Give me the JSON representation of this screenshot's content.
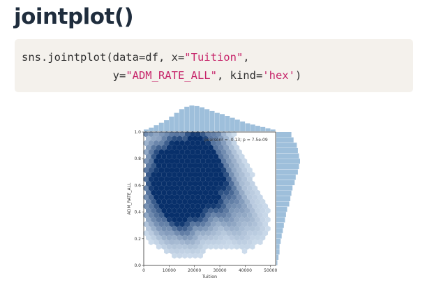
{
  "heading": "jointplot()",
  "code": {
    "line1": {
      "prefix": "sns.jointplot(data=df, x=",
      "x_value": "\"Tuition\"",
      "suffix": ","
    },
    "line2": {
      "prefix": "              y=",
      "y_value": "\"ADM_RATE_ALL\"",
      "middle": ", kind=",
      "kind_value": "'hex'",
      "suffix": ")"
    }
  },
  "colors": {
    "string": "#c7266b",
    "hex_base": "#2f7fc0",
    "hex_dark": "#08306b",
    "marginal": "#9ebfdb"
  },
  "chart_data": {
    "type": "hexbin",
    "xlabel": "Tuition",
    "ylabel": "ADM_RATE_ALL",
    "xlim": [
      0,
      52000
    ],
    "ylim": [
      0,
      1.0
    ],
    "x_ticks": [
      {
        "value": 0,
        "label": "0"
      },
      {
        "value": 10000,
        "label": "10000"
      },
      {
        "value": 20000,
        "label": "20000"
      },
      {
        "value": 30000,
        "label": "30000"
      },
      {
        "value": 40000,
        "label": "40000"
      },
      {
        "value": 50000,
        "label": "50000"
      }
    ],
    "y_ticks": [
      {
        "value": 0.0,
        "label": "0.0"
      },
      {
        "value": 0.2,
        "label": "0.2"
      },
      {
        "value": 0.4,
        "label": "0.4"
      },
      {
        "value": 0.6,
        "label": "0.6"
      },
      {
        "value": 0.8,
        "label": "0.8"
      },
      {
        "value": 1.0,
        "label": "1.0"
      }
    ],
    "annotation": "pearsonr = -0.13; p = 7.5e-09",
    "hex_centers": [
      {
        "x": 16000,
        "y": 0.6,
        "density": 1.0
      },
      {
        "x": 21000,
        "y": 0.78,
        "density": 0.95
      },
      {
        "x": 15000,
        "y": 0.52,
        "density": 0.85
      },
      {
        "x": 12000,
        "y": 0.7,
        "density": 0.7
      },
      {
        "x": 25000,
        "y": 0.66,
        "density": 0.7
      },
      {
        "x": 8000,
        "y": 0.82,
        "density": 0.55
      },
      {
        "x": 30000,
        "y": 0.55,
        "density": 0.45
      },
      {
        "x": 10000,
        "y": 0.4,
        "density": 0.4
      },
      {
        "x": 22000,
        "y": 0.98,
        "density": 0.5
      },
      {
        "x": 35000,
        "y": 0.4,
        "density": 0.25
      },
      {
        "x": 18000,
        "y": 0.3,
        "density": 0.3
      },
      {
        "x": 42000,
        "y": 0.3,
        "density": 0.15
      },
      {
        "x": 5000,
        "y": 0.55,
        "density": 0.35
      }
    ],
    "marginal_x": {
      "bins_start": 0,
      "bin_width": 2000,
      "counts": [
        3,
        6,
        10,
        14,
        18,
        24,
        30,
        36,
        40,
        42,
        41,
        39,
        36,
        33,
        30,
        28,
        25,
        22,
        19,
        16,
        13,
        11,
        9,
        7,
        5,
        3
      ]
    },
    "marginal_y": {
      "bins_start": 0.0,
      "bin_width": 0.04,
      "counts": [
        1,
        2,
        3,
        3,
        4,
        5,
        6,
        7,
        8,
        9,
        10,
        12,
        13,
        14,
        15,
        17,
        18,
        20,
        21,
        22,
        21,
        20,
        19,
        16,
        14
      ]
    }
  }
}
